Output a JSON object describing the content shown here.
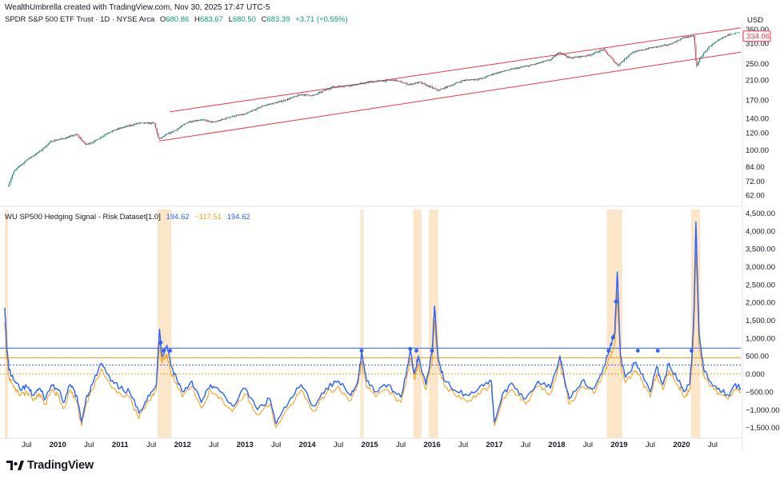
{
  "header": {
    "attribution": "WealthUmbrella created with TradingView.com, Nov 30, 2025 17:47 UTC-5"
  },
  "price_pane": {
    "legend": {
      "symbol": "SPDR S&P 500 ETF Trust · 1D · NYSE Arca",
      "open_label": "O",
      "open": "680.86",
      "high_label": "H",
      "high": "683.67",
      "low_label": "L",
      "low": "680.50",
      "close_label": "C",
      "close": "683.39",
      "change": "+3.71 (+0.55%)"
    },
    "currency": "USD",
    "last_price_label": "334.06"
  },
  "indicator_pane": {
    "legend": {
      "name": "WU SP500 Hedging Signal - Risk Dataset[1.0]",
      "v1": "194.62",
      "v2": "−117.51",
      "v3": "194.62"
    }
  },
  "brand": {
    "name": "TradingView",
    "logo_icon": "tradingview-logo-icon"
  },
  "colors": {
    "candle_up": "#089981",
    "candle_down": "#f23645",
    "channel": "#f23645",
    "signal_line": "#2962ff",
    "orange_line": "#f7a21b",
    "highlight": "#fce2bf"
  },
  "chart_data": [
    {
      "type": "line",
      "name": "price",
      "scale": "log",
      "ylim": [
        58,
        380
      ],
      "yticks": [
        62,
        72,
        84,
        100,
        120,
        140,
        170,
        210,
        250,
        310,
        360
      ],
      "ytick_labels": [
        "62.00",
        "72.00",
        "84.00",
        "100.00",
        "120.00",
        "140.00",
        "170.00",
        "210.00",
        "250.00",
        "310.00",
        "360.00"
      ],
      "x": [
        2009.2,
        2009.3,
        2009.5,
        2009.7,
        2009.9,
        2010.1,
        2010.3,
        2010.45,
        2010.6,
        2010.8,
        2011.0,
        2011.3,
        2011.55,
        2011.62,
        2011.75,
        2011.9,
        2012.1,
        2012.3,
        2012.5,
        2012.8,
        2013.0,
        2013.3,
        2013.6,
        2013.9,
        2014.1,
        2014.4,
        2014.8,
        2015.0,
        2015.4,
        2015.63,
        2015.8,
        2016.1,
        2016.5,
        2016.8,
        2017.0,
        2017.3,
        2017.6,
        2017.9,
        2018.05,
        2018.2,
        2018.5,
        2018.75,
        2018.98,
        2019.2,
        2019.5,
        2019.8,
        2020.05,
        2020.2,
        2020.24,
        2020.3,
        2020.45,
        2020.6,
        2020.8
      ],
      "y": [
        68,
        80,
        90,
        98,
        110,
        113,
        118,
        106,
        110,
        120,
        126,
        133,
        133,
        112,
        118,
        124,
        135,
        138,
        134,
        143,
        146,
        160,
        168,
        180,
        178,
        195,
        200,
        206,
        210,
        200,
        205,
        188,
        209,
        213,
        225,
        236,
        246,
        260,
        283,
        265,
        272,
        290,
        245,
        280,
        295,
        305,
        330,
        335,
        240,
        265,
        300,
        320,
        345
      ],
      "series": [
        {
          "name": "channel-upper",
          "x": [
            2011.8,
            2020.95
          ],
          "y": [
            150,
            365
          ]
        },
        {
          "name": "channel-lower",
          "x": [
            2011.62,
            2020.95
          ],
          "y": [
            110,
            282
          ]
        }
      ]
    },
    {
      "type": "line",
      "name": "signal",
      "ylim": [
        -1800,
        4600
      ],
      "yticks": [
        -1500,
        -1000,
        -500,
        0,
        500,
        1000,
        1500,
        2000,
        2500,
        3000,
        3500,
        4000,
        4500
      ],
      "ytick_labels": [
        "−1,500.00",
        "−1,000.00",
        "−500.00",
        "0.000",
        "500.00",
        "1,000.00",
        "1,500.00",
        "2,000.00",
        "2,500.00",
        "3,000.00",
        "3,500.00",
        "4,000.00",
        "4,500.00"
      ],
      "reference_lines": [
        {
          "value": 720,
          "color": "#2962ff",
          "style": "solid"
        },
        {
          "value": 450,
          "color": "#f7a21b",
          "style": "solid"
        },
        {
          "value": 250,
          "color": "#2962ff",
          "style": "dotted"
        },
        {
          "value": 0,
          "color": "#f7a21b",
          "style": "dotted"
        }
      ],
      "highlight_ranges": [
        [
          2009.15,
          2009.2
        ],
        [
          2011.6,
          2011.82
        ],
        [
          2014.85,
          2014.9
        ],
        [
          2015.7,
          2015.83
        ],
        [
          2015.95,
          2016.1
        ],
        [
          2018.8,
          2019.05
        ],
        [
          2020.15,
          2020.3
        ]
      ],
      "markers_x": [
        2011.65,
        2011.7,
        2011.8,
        2014.87,
        2015.65,
        2015.75,
        2016.0,
        2018.83,
        2018.9,
        2018.95,
        2019.3,
        2019.62,
        2020.16
      ],
      "series": [
        {
          "name": "blue",
          "x": [
            2009.15,
            2009.18,
            2009.22,
            2009.3,
            2009.4,
            2009.5,
            2009.6,
            2009.7,
            2009.8,
            2009.9,
            2010.0,
            2010.1,
            2010.2,
            2010.3,
            2010.38,
            2010.45,
            2010.55,
            2010.7,
            2010.85,
            2011.0,
            2011.15,
            2011.3,
            2011.45,
            2011.58,
            2011.63,
            2011.67,
            2011.75,
            2011.82,
            2011.9,
            2012.0,
            2012.15,
            2012.3,
            2012.45,
            2012.6,
            2012.8,
            2013.0,
            2013.2,
            2013.4,
            2013.5,
            2013.7,
            2013.9,
            2014.1,
            2014.3,
            2014.5,
            2014.7,
            2014.82,
            2014.87,
            2014.95,
            2015.1,
            2015.3,
            2015.5,
            2015.62,
            2015.65,
            2015.72,
            2015.78,
            2015.9,
            2016.0,
            2016.04,
            2016.1,
            2016.2,
            2016.4,
            2016.6,
            2016.8,
            2016.95,
            2017.0,
            2017.15,
            2017.3,
            2017.5,
            2017.7,
            2017.9,
            2018.05,
            2018.1,
            2018.2,
            2018.4,
            2018.6,
            2018.75,
            2018.85,
            2018.93,
            2018.97,
            2019.02,
            2019.1,
            2019.25,
            2019.35,
            2019.5,
            2019.6,
            2019.7,
            2019.8,
            2019.95,
            2020.05,
            2020.13,
            2020.17,
            2020.2,
            2020.23,
            2020.28,
            2020.35,
            2020.45,
            2020.6,
            2020.75,
            2020.85,
            2020.95
          ],
          "y": [
            1850,
            800,
            100,
            -200,
            -450,
            -350,
            -600,
            -400,
            -700,
            -300,
            -450,
            -800,
            -300,
            -600,
            -1350,
            -700,
            -300,
            300,
            -200,
            -400,
            -500,
            -1100,
            -600,
            -300,
            1250,
            500,
            800,
            200,
            -100,
            -500,
            -200,
            -800,
            -300,
            -500,
            -900,
            -400,
            -1000,
            -700,
            -1400,
            -800,
            -300,
            -900,
            -400,
            -200,
            -600,
            -100,
            600,
            -200,
            -500,
            -300,
            -650,
            300,
            700,
            0,
            500,
            -300,
            600,
            1900,
            400,
            -200,
            -500,
            -600,
            -300,
            -200,
            -1350,
            -500,
            -300,
            -700,
            -200,
            -400,
            500,
            100,
            -700,
            -200,
            -400,
            200,
            700,
            1200,
            2850,
            500,
            -100,
            300,
            0,
            -500,
            200,
            -300,
            300,
            -200,
            -500,
            -300,
            600,
            1800,
            4250,
            1200,
            200,
            -200,
            -400,
            -600,
            -300,
            -400
          ]
        },
        {
          "name": "orange",
          "x": [
            2009.15,
            2009.18,
            2009.22,
            2009.3,
            2009.4,
            2009.5,
            2009.6,
            2009.7,
            2009.8,
            2009.9,
            2010.0,
            2010.1,
            2010.2,
            2010.3,
            2010.38,
            2010.45,
            2010.55,
            2010.7,
            2010.85,
            2011.0,
            2011.15,
            2011.3,
            2011.45,
            2011.58,
            2011.63,
            2011.67,
            2011.75,
            2011.82,
            2011.9,
            2012.0,
            2012.15,
            2012.3,
            2012.45,
            2012.6,
            2012.8,
            2013.0,
            2013.2,
            2013.4,
            2013.5,
            2013.7,
            2013.9,
            2014.1,
            2014.3,
            2014.5,
            2014.7,
            2014.82,
            2014.87,
            2014.95,
            2015.1,
            2015.3,
            2015.5,
            2015.62,
            2015.65,
            2015.72,
            2015.78,
            2015.9,
            2016.0,
            2016.04,
            2016.1,
            2016.2,
            2016.4,
            2016.6,
            2016.8,
            2016.95,
            2017.0,
            2017.15,
            2017.3,
            2017.5,
            2017.7,
            2017.9,
            2018.05,
            2018.1,
            2018.2,
            2018.4,
            2018.6,
            2018.75,
            2018.85,
            2018.93,
            2018.97,
            2019.02,
            2019.1,
            2019.25,
            2019.35,
            2019.5,
            2019.6,
            2019.7,
            2019.8,
            2019.95,
            2020.05,
            2020.13,
            2020.17,
            2020.2,
            2020.23,
            2020.28,
            2020.35,
            2020.45,
            2020.6,
            2020.75,
            2020.85,
            2020.95
          ],
          "y": [
            1450,
            500,
            -100,
            -400,
            -600,
            -500,
            -750,
            -550,
            -850,
            -450,
            -600,
            -950,
            -450,
            -750,
            -1450,
            -850,
            -450,
            150,
            -350,
            -550,
            -650,
            -1250,
            -750,
            -450,
            900,
            300,
            550,
            0,
            -250,
            -650,
            -350,
            -950,
            -450,
            -650,
            -1050,
            -550,
            -1150,
            -850,
            -1500,
            -950,
            -450,
            -1050,
            -550,
            -350,
            -750,
            -250,
            350,
            -350,
            -650,
            -450,
            -800,
            100,
            450,
            -150,
            300,
            -450,
            350,
            1500,
            200,
            -350,
            -650,
            -750,
            -450,
            -350,
            -1450,
            -650,
            -450,
            -850,
            -350,
            -550,
            300,
            -50,
            -850,
            -350,
            -550,
            0,
            450,
            850,
            2300,
            300,
            -250,
            100,
            -150,
            -650,
            0,
            -450,
            100,
            -350,
            -650,
            -450,
            350,
            1300,
            3400,
            800,
            0,
            -350,
            -550,
            -700,
            -450,
            -500
          ]
        }
      ]
    }
  ],
  "x_axis": {
    "ticks": [
      {
        "x": 2009.5,
        "label": "Jul",
        "year": false
      },
      {
        "x": 2010.0,
        "label": "2010",
        "year": true
      },
      {
        "x": 2010.5,
        "label": "Jul",
        "year": false
      },
      {
        "x": 2011.0,
        "label": "2011",
        "year": true
      },
      {
        "x": 2011.5,
        "label": "Jul",
        "year": false
      },
      {
        "x": 2012.0,
        "label": "2012",
        "year": true
      },
      {
        "x": 2012.5,
        "label": "Jul",
        "year": false
      },
      {
        "x": 2013.0,
        "label": "2013",
        "year": true
      },
      {
        "x": 2013.5,
        "label": "Jul",
        "year": false
      },
      {
        "x": 2014.0,
        "label": "2014",
        "year": true
      },
      {
        "x": 2014.5,
        "label": "Jul",
        "year": false
      },
      {
        "x": 2015.0,
        "label": "2015",
        "year": true
      },
      {
        "x": 2015.5,
        "label": "Jul",
        "year": false
      },
      {
        "x": 2016.0,
        "label": "2016",
        "year": true
      },
      {
        "x": 2016.5,
        "label": "Jul",
        "year": false
      },
      {
        "x": 2017.0,
        "label": "2017",
        "year": true
      },
      {
        "x": 2017.5,
        "label": "Jul",
        "year": false
      },
      {
        "x": 2018.0,
        "label": "2018",
        "year": true
      },
      {
        "x": 2018.5,
        "label": "Jul",
        "year": false
      },
      {
        "x": 2019.0,
        "label": "2019",
        "year": true
      },
      {
        "x": 2019.5,
        "label": "Jul",
        "year": false
      },
      {
        "x": 2020.0,
        "label": "2020",
        "year": true
      },
      {
        "x": 2020.5,
        "label": "Jul",
        "year": false
      }
    ]
  }
}
